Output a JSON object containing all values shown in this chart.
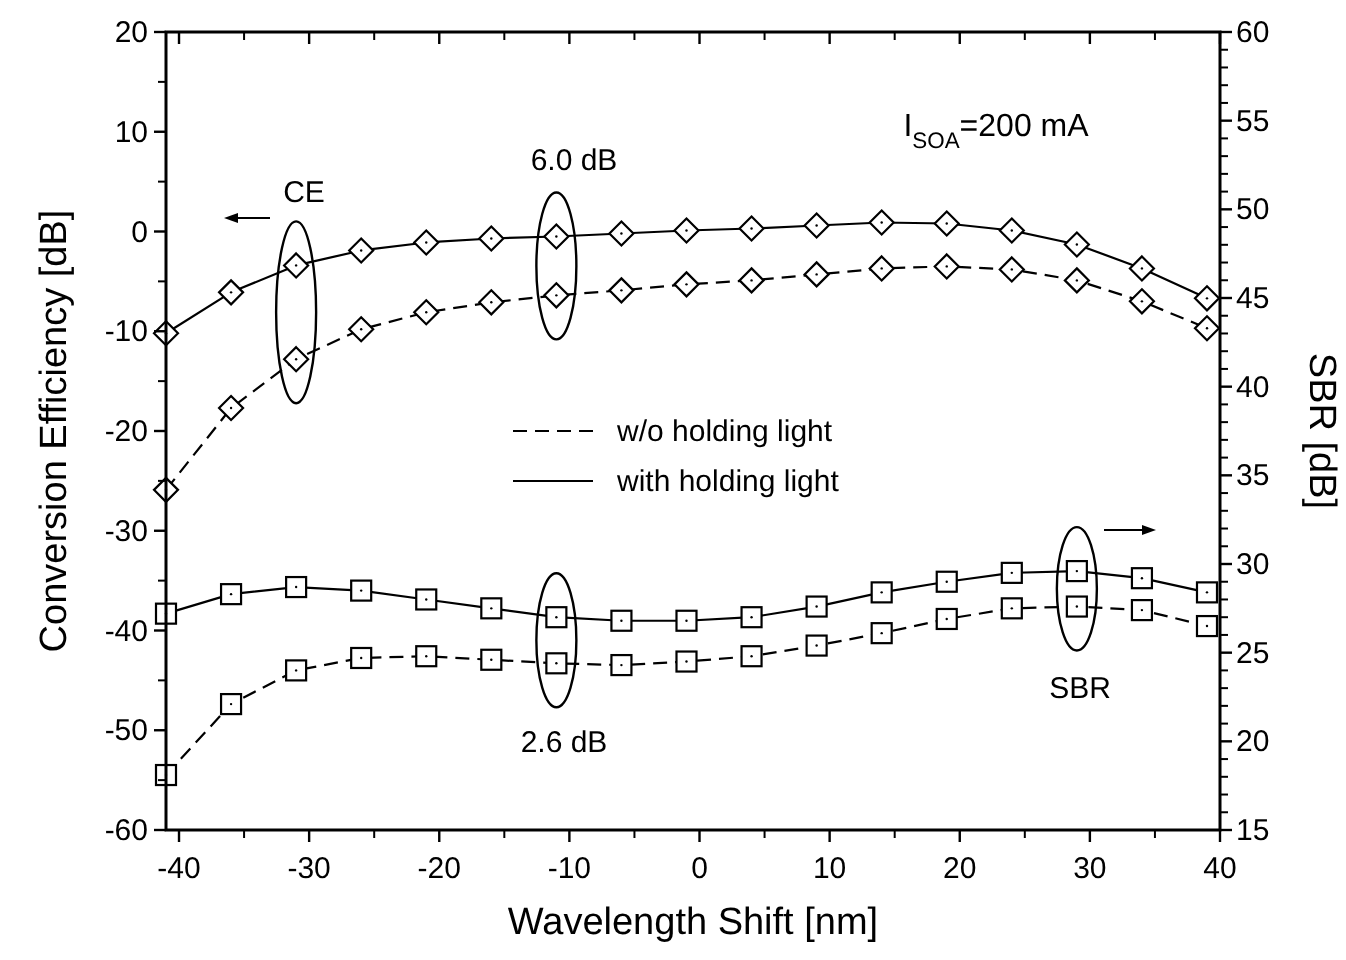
{
  "chart_data": {
    "type": "line",
    "xlabel": "Wavelength Shift [nm]",
    "ylabel": "Conversion Efficiency [dB]",
    "y2label": "SBR [dB]",
    "x": [
      -41,
      -36,
      -31,
      -26,
      -21,
      -16,
      -11,
      -6,
      -1,
      4,
      9,
      14,
      19,
      24,
      29,
      34,
      39
    ],
    "series": [
      {
        "name": "with holding light",
        "color": "#000000",
        "marker": "diamond",
        "line_style": "solid",
        "values": [
          -10.2,
          -6.1,
          -3.4,
          -1.9,
          -1.1,
          -0.7,
          -0.5,
          -0.2,
          0.1,
          0.3,
          0.6,
          0.9,
          0.8,
          0.1,
          -1.3,
          -3.7,
          -6.7
        ]
      },
      {
        "name": "w/o holding light",
        "color": "#000000",
        "marker": "diamond",
        "line_style": "dashed",
        "values": [
          -25.9,
          -17.7,
          -12.8,
          -9.8,
          -8.1,
          -7.1,
          -6.4,
          -5.9,
          -5.3,
          -4.9,
          -4.3,
          -3.7,
          -3.5,
          -3.8,
          -4.9,
          -7.0,
          -9.7
        ]
      },
      {
        "color": "#000000",
        "marker": "square",
        "line_style": "solid",
        "axis": "y2",
        "values": [
          27.2,
          28.3,
          28.7,
          28.5,
          28.0,
          27.5,
          27.0,
          26.8,
          26.8,
          27.0,
          27.6,
          28.4,
          29.0,
          29.5,
          29.6,
          29.2,
          28.4
        ]
      },
      {
        "color": "#000000",
        "marker": "square",
        "line_style": "dashed",
        "axis": "y2",
        "values": [
          18.1,
          22.1,
          24.0,
          24.7,
          24.8,
          24.6,
          24.4,
          24.3,
          24.5,
          24.8,
          25.4,
          26.1,
          26.9,
          27.5,
          27.6,
          27.4,
          26.5
        ]
      }
    ],
    "xlim": [
      -41,
      40
    ],
    "xticks": [
      -40,
      -30,
      -20,
      -10,
      0,
      10,
      20,
      30,
      40
    ],
    "ylim": [
      -60,
      20
    ],
    "yticks": [
      -60,
      -50,
      -40,
      -30,
      -20,
      -10,
      0,
      10,
      20
    ],
    "y2lim": [
      15,
      60
    ],
    "y2ticks": [
      15,
      20,
      25,
      30,
      35,
      40,
      45,
      50,
      55,
      60
    ],
    "grid": false,
    "legend": "center",
    "annotations": [
      "CE",
      "6.0 dB",
      "2.6 dB",
      "SBR",
      "I$_{SOA}$=200 mA"
    ]
  }
}
